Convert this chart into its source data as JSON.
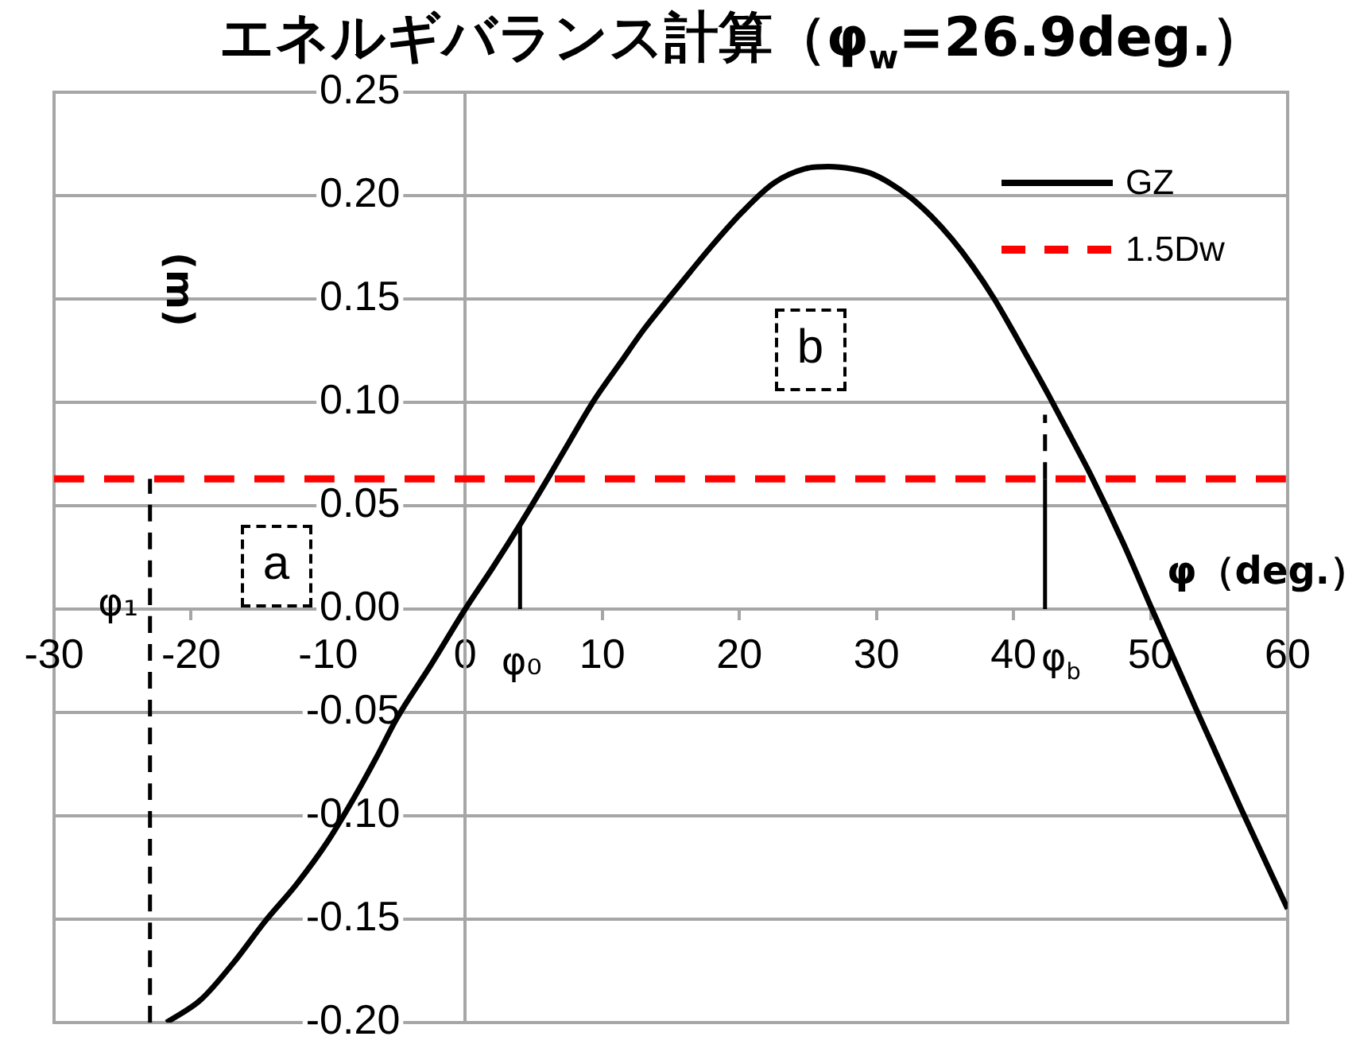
{
  "chart_data": {
    "type": "line",
    "title": "エネルギバランス計算（φ$_{w}$=26.9deg.）",
    "xlabel": "φ（deg.）",
    "ylabel": "(m)",
    "xlim": [
      -30,
      60
    ],
    "xticks": [
      -30,
      -20,
      -10,
      0,
      10,
      20,
      30,
      40,
      50,
      60
    ],
    "ylim": [
      -0.2,
      0.25
    ],
    "yticks": [
      {
        "value": -0.2,
        "label": "-0.20"
      },
      -0.15,
      {
        "value": -0.1,
        "label": "-0.10"
      },
      -0.05,
      {
        "value": 0,
        "label": "0.00"
      },
      0.05,
      {
        "value": 0.1,
        "label": "0.10"
      },
      0.15,
      {
        "value": 0.2,
        "label": "0.20"
      },
      0.25
    ],
    "grid": "y",
    "legend": "top right",
    "marker": "none",
    "series": [
      {
        "name": "GZ",
        "color": "#000000",
        "line_style": "solid",
        "x": [
          -21.8,
          -19.3,
          -16.9,
          -14.6,
          -12.3,
          -10.0,
          -8.0,
          -6.5,
          -5.0,
          -2.5,
          0.0,
          2.0,
          4.1,
          6.1,
          7.6,
          9.4,
          11.3,
          13.0,
          14.8,
          16.4,
          17.9,
          20.2,
          22.5,
          24.8,
          26.5,
          28.2,
          29.5,
          31.0,
          32.5,
          34.0,
          35.5,
          37.0,
          38.6,
          40.0,
          41.1,
          42.6,
          44.2,
          45.7,
          48.0,
          50.1,
          53.3,
          56.7,
          60.0
        ],
        "values": [
          -0.2,
          -0.189,
          -0.171,
          -0.151,
          -0.133,
          -0.112,
          -0.09,
          -0.072,
          -0.053,
          -0.027,
          0.0,
          0.02,
          0.042,
          0.064,
          0.081,
          0.101,
          0.119,
          0.135,
          0.15,
          0.163,
          0.175,
          0.192,
          0.206,
          0.213,
          0.214,
          0.213,
          0.211,
          0.206,
          0.199,
          0.19,
          0.179,
          0.166,
          0.15,
          0.134,
          0.121,
          0.103,
          0.083,
          0.064,
          0.032,
          0.0,
          -0.048,
          -0.098,
          -0.145
        ]
      },
      {
        "name": "1.5Dw",
        "color": "#ff0000",
        "line_style": "dashed",
        "x": [
          -30,
          60
        ],
        "values": [
          0.063,
          0.063
        ]
      },
      {
        "color": "#000000",
        "line_style": "dashed",
        "x": [
          -23,
          -23
        ],
        "values": [
          -0.2,
          0.063
        ]
      },
      {
        "color": "#000000",
        "line_style": "solid",
        "x": [
          4.0,
          4.0
        ],
        "values": [
          0,
          0.042
        ]
      },
      {
        "color": "#000000",
        "line_style": "solid",
        "x": [
          42.3,
          42.3
        ],
        "values": [
          0,
          0.063
        ]
      },
      {
        "color": "#000000",
        "line_style": "dashed",
        "x": [
          42.3,
          42.3
        ],
        "values": [
          0.063,
          0.094
        ]
      }
    ],
    "annotations": [
      "a",
      "b",
      {
        "text": "φ₁",
        "x": -23,
        "y": 0
      },
      {
        "text": "φ₀",
        "x": 4.0,
        "y": 0
      },
      {
        "text": "φ$_{b}$",
        "x": 42.3,
        "y": 0
      }
    ]
  }
}
